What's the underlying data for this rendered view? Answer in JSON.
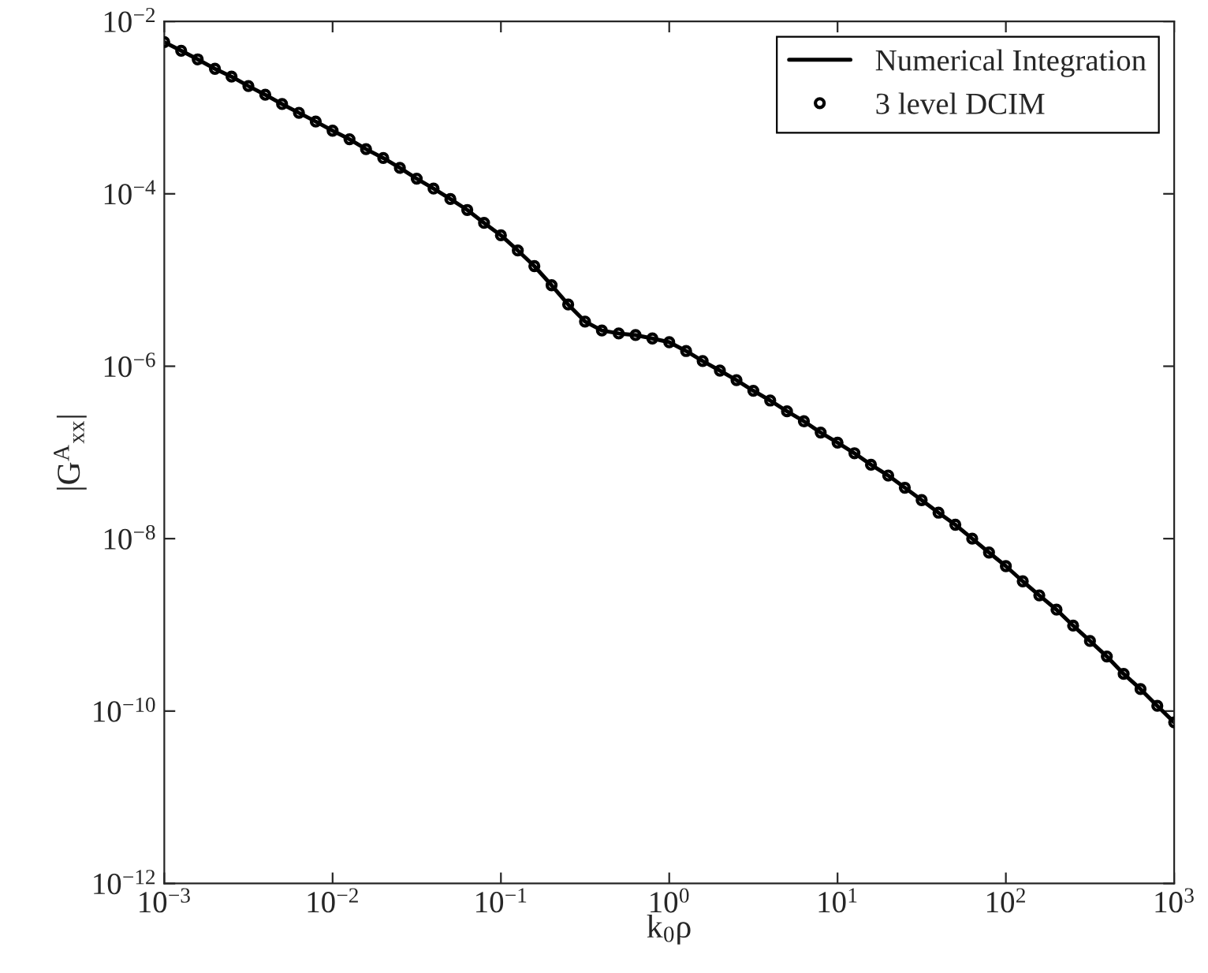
{
  "chart_data": {
    "type": "line",
    "xlabel": "k$_{0}$ρ",
    "ylabel": "|G$^{A}$$_{xx}$|",
    "log": "xy",
    "grid": false,
    "legend": "top right",
    "x": [
      0.001,
      0.00126,
      0.00158,
      0.002,
      0.00251,
      0.00316,
      0.00398,
      0.00501,
      0.00631,
      0.00794,
      0.01,
      0.0126,
      0.0158,
      0.02,
      0.0251,
      0.0316,
      0.0398,
      0.0501,
      0.0631,
      0.0794,
      0.1,
      0.126,
      0.158,
      0.2,
      0.251,
      0.316,
      0.398,
      0.501,
      0.631,
      0.794,
      1,
      1.26,
      1.58,
      2,
      2.51,
      3.16,
      3.98,
      5.01,
      6.31,
      7.94,
      10,
      12.6,
      15.8,
      20,
      25.1,
      31.6,
      39.8,
      50.1,
      63.1,
      79.4,
      100,
      126,
      158,
      200,
      251,
      316,
      398,
      501,
      631,
      794,
      1000
    ],
    "series": [
      {
        "name": "Numerical Integration",
        "color": "#000000",
        "marker": "none",
        "line_style": "solid",
        "values": [
          0.00575,
          0.00457,
          0.00363,
          0.00282,
          0.00229,
          0.00178,
          0.00141,
          0.0011,
          0.00087,
          0.00069,
          0.00054,
          0.00043,
          0.00033,
          0.00026,
          0.0002,
          0.00015,
          0.000115,
          8.7e-05,
          6.5e-05,
          4.6e-05,
          3.3e-05,
          2.2e-05,
          1.45e-05,
          8.7e-06,
          5.2e-06,
          3.3e-06,
          2.6e-06,
          2.4e-06,
          2.3e-06,
          2.1e-06,
          1.9e-06,
          1.5e-06,
          1.15e-06,
          8.9e-07,
          6.9e-07,
          5.2e-07,
          4e-07,
          3e-07,
          2.3e-07,
          1.7e-07,
          1.3e-07,
          9.8e-08,
          7.2e-08,
          5.4e-08,
          3.9e-08,
          2.8e-08,
          2e-08,
          1.45e-08,
          1e-08,
          6.9e-09,
          4.8e-09,
          3.2e-09,
          2.2e-09,
          1.5e-09,
          9.8e-10,
          6.5e-10,
          4.3e-10,
          2.7e-10,
          1.8e-10,
          1.15e-10,
          7.4e-11
        ]
      },
      {
        "name": "3 level DCIM",
        "type": "scatter",
        "color": "#000000",
        "marker": "circle",
        "values": [
          0.00575,
          0.00457,
          0.00363,
          0.00282,
          0.00229,
          0.00178,
          0.00141,
          0.0011,
          0.00087,
          0.00069,
          0.00054,
          0.00043,
          0.00033,
          0.00026,
          0.0002,
          0.00015,
          0.000115,
          8.7e-05,
          6.5e-05,
          4.6e-05,
          3.3e-05,
          2.2e-05,
          1.45e-05,
          8.7e-06,
          5.2e-06,
          3.3e-06,
          2.6e-06,
          2.4e-06,
          2.3e-06,
          2.1e-06,
          1.9e-06,
          1.5e-06,
          1.15e-06,
          8.9e-07,
          6.9e-07,
          5.2e-07,
          4e-07,
          3e-07,
          2.3e-07,
          1.7e-07,
          1.3e-07,
          9.8e-08,
          7.2e-08,
          5.4e-08,
          3.9e-08,
          2.8e-08,
          2e-08,
          1.45e-08,
          1e-08,
          6.9e-09,
          4.8e-09,
          3.2e-09,
          2.2e-09,
          1.5e-09,
          9.8e-10,
          6.5e-10,
          4.3e-10,
          2.7e-10,
          1.8e-10,
          1.15e-10,
          7.4e-11
        ]
      }
    ],
    "xlim": [
      0.001,
      1000
    ],
    "xticks": [
      {
        "value": 0.001,
        "label": "10$^{−3}$"
      },
      {
        "value": 0.01,
        "label": "10$^{−2}$"
      },
      {
        "value": 0.1,
        "label": "10$^{−1}$"
      },
      {
        "value": 1,
        "label": "10$^{0}$"
      },
      {
        "value": 10,
        "label": "10$^{1}$"
      },
      {
        "value": 100,
        "label": "10$^{2}$"
      },
      {
        "value": 1000,
        "label": "10$^{3}$"
      }
    ],
    "ylim": [
      1e-12,
      0.01
    ],
    "yticks": [
      {
        "value": 1e-12,
        "label": "10$^{−12}$"
      },
      {
        "value": 1e-10,
        "label": "10$^{−10}$"
      },
      {
        "value": 1e-08,
        "label": "10$^{−8}$"
      },
      {
        "value": 1e-06,
        "label": "10$^{−6}$"
      },
      {
        "value": 0.0001,
        "label": "10$^{−4}$"
      },
      {
        "value": 0.01,
        "label": "10$^{−2}$"
      }
    ]
  }
}
